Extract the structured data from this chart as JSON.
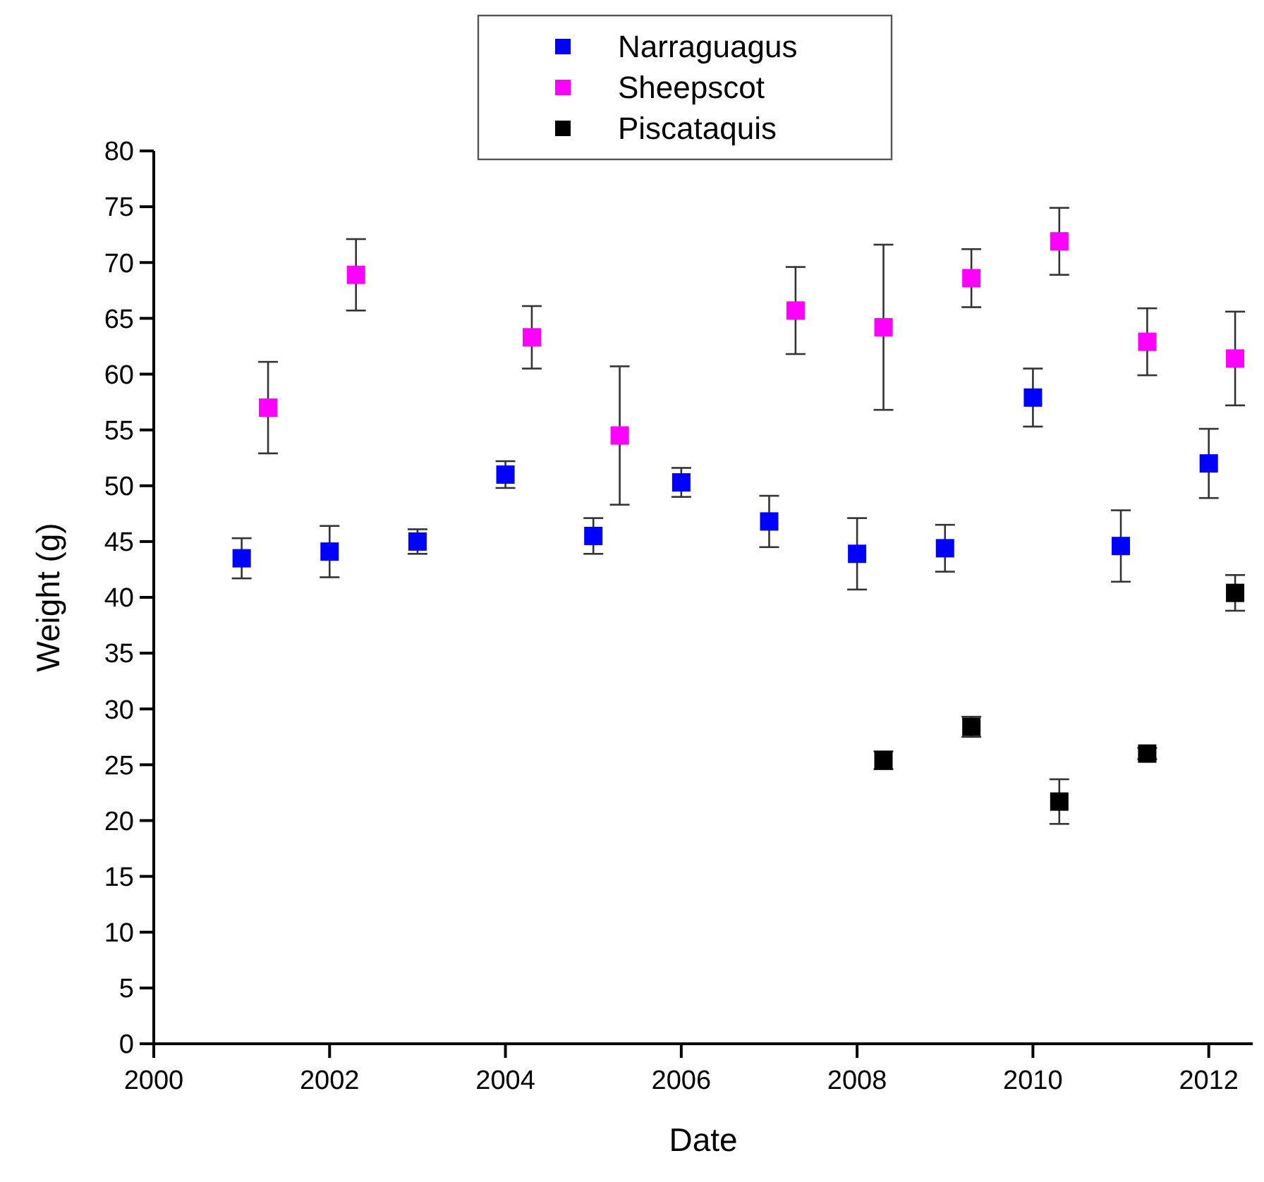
{
  "chart_data": {
    "type": "scatter",
    "xlabel": "Date",
    "ylabel": "Weight (g)",
    "xlim": [
      2000,
      2012.5
    ],
    "xticks": [
      2000,
      2002,
      2004,
      2006,
      2008,
      2010,
      2012
    ],
    "ylim": [
      0,
      80
    ],
    "yticks": [
      0,
      5,
      10,
      15,
      20,
      25,
      30,
      35,
      40,
      45,
      50,
      55,
      60,
      65,
      70,
      75,
      80
    ],
    "grid": false,
    "legend": "top",
    "marker": "square",
    "series": [
      {
        "name": "Narraguagus",
        "color": "#0000ff",
        "x": [
          2001,
          2002,
          2003,
          2004,
          2005,
          2006,
          2007,
          2008,
          2009,
          2010,
          2011,
          2012
        ],
        "values": [
          43.5,
          44.1,
          45.0,
          51.0,
          45.5,
          50.3,
          46.8,
          43.9,
          44.4,
          57.9,
          44.6,
          52.0
        ],
        "errors": [
          1.8,
          2.3,
          1.1,
          1.2,
          1.6,
          1.3,
          2.3,
          3.2,
          2.1,
          2.6,
          3.2,
          3.1
        ]
      },
      {
        "name": "Sheepscot",
        "color": "#ff00ff",
        "x": [
          2001.3,
          2002.3,
          2004.3,
          2005.3,
          2007.3,
          2008.3,
          2009.3,
          2010.3,
          2011.3,
          2012.3
        ],
        "values": [
          57.0,
          68.9,
          63.3,
          54.5,
          65.7,
          64.2,
          68.6,
          71.9,
          62.9,
          61.4
        ],
        "errors": [
          4.1,
          3.2,
          2.8,
          6.2,
          3.9,
          7.4,
          2.6,
          3.0,
          3.0,
          4.2
        ]
      },
      {
        "name": "Piscataquis",
        "color": "#000000",
        "x": [
          2008.3,
          2009.3,
          2010.3,
          2011.3,
          2012.3
        ],
        "values": [
          25.4,
          28.4,
          21.7,
          26.0,
          40.4
        ],
        "errors": [
          0.8,
          0.9,
          2.0,
          0.5,
          1.6
        ]
      }
    ]
  }
}
